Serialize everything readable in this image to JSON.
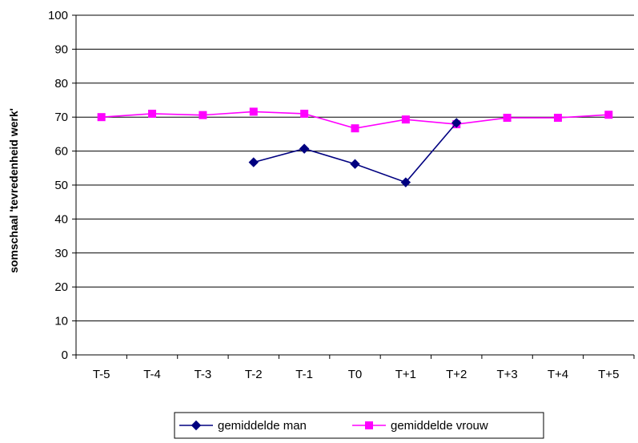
{
  "chart_data": {
    "type": "line",
    "title": "",
    "xlabel": "",
    "ylabel": "somschaal 'tevredenheid werk'",
    "categories": [
      "T-5",
      "T-4",
      "T-3",
      "T-2",
      "T-1",
      "T0",
      "T+1",
      "T+2",
      "T+3",
      "T+4",
      "T+5"
    ],
    "ylim": [
      0,
      100
    ],
    "yticks": [
      0,
      10,
      20,
      30,
      40,
      50,
      60,
      70,
      80,
      90,
      100
    ],
    "grid": "horizontal",
    "legend_position": "bottom",
    "series": [
      {
        "name": "gemiddelde man",
        "color": "#000080",
        "marker": "diamond",
        "values": [
          null,
          null,
          null,
          56.7,
          60.7,
          56.2,
          50.8,
          68.3,
          null,
          null,
          null
        ]
      },
      {
        "name": "gemiddelde vrouw",
        "color": "#ff00ff",
        "marker": "square",
        "values": [
          70.0,
          71.0,
          70.6,
          71.6,
          71.0,
          66.7,
          69.3,
          67.9,
          69.8,
          69.8,
          70.7
        ]
      }
    ]
  }
}
